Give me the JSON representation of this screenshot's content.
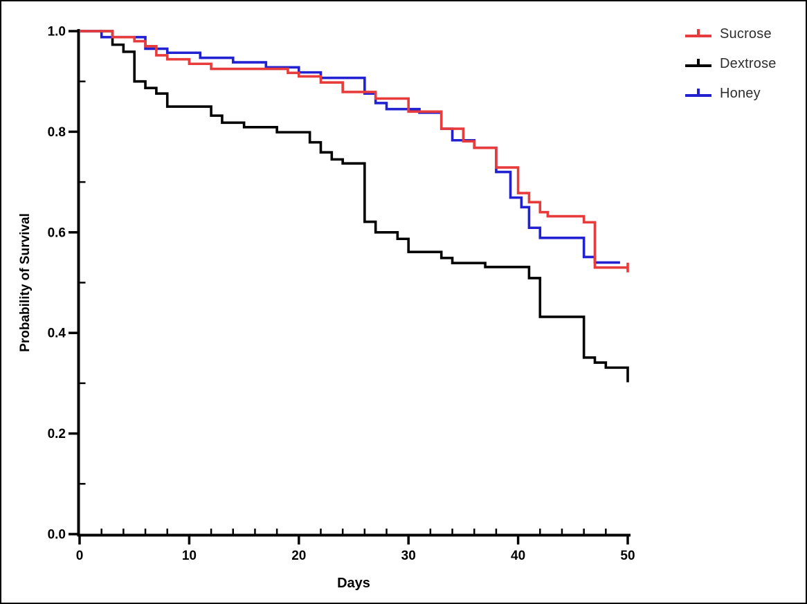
{
  "figure": {
    "background": "#ffffff",
    "frame_color": "#000000"
  },
  "chart_data": {
    "type": "line",
    "subtype": "kaplan-meier-step-survival",
    "title": "",
    "xlabel": "Days",
    "ylabel": "Probability of Survival",
    "xlim": [
      0,
      50
    ],
    "ylim": [
      0.0,
      1.0
    ],
    "x_major_ticks": [
      0,
      10,
      20,
      30,
      40,
      50
    ],
    "x_tick_labels": [
      "0",
      "10",
      "20",
      "30",
      "40",
      "50"
    ],
    "x_minor_step": 2,
    "y_major_ticks": [
      0.0,
      0.2,
      0.4,
      0.6,
      0.8,
      1.0
    ],
    "y_tick_labels": [
      "0.0",
      "0.2",
      "0.4",
      "0.6",
      "0.8",
      "1.0"
    ],
    "y_minor_step": 0.1,
    "grid": false,
    "legend_position": "top-right",
    "axis_color": "#000000",
    "series": [
      {
        "name": "Sucrose",
        "color": "#e83c3c",
        "z": 3,
        "end_day": 50,
        "steps": [
          [
            0,
            1.0
          ],
          [
            3,
            0.988
          ],
          [
            5,
            0.98
          ],
          [
            6,
            0.97
          ],
          [
            7,
            0.952
          ],
          [
            8,
            0.944
          ],
          [
            10,
            0.935
          ],
          [
            12,
            0.925
          ],
          [
            19,
            0.917
          ],
          [
            20,
            0.91
          ],
          [
            22,
            0.898
          ],
          [
            24,
            0.879
          ],
          [
            27,
            0.866
          ],
          [
            30,
            0.84
          ],
          [
            33,
            0.806
          ],
          [
            35,
            0.781
          ],
          [
            36,
            0.768
          ],
          [
            38,
            0.729
          ],
          [
            40,
            0.678
          ],
          [
            41,
            0.66
          ],
          [
            42,
            0.64
          ],
          [
            42.7,
            0.632
          ],
          [
            46,
            0.62
          ],
          [
            47,
            0.53
          ]
        ]
      },
      {
        "name": "Dextrose",
        "color": "#000000",
        "z": 1,
        "end_day": 50,
        "steps": [
          [
            0,
            1.0
          ],
          [
            3,
            0.973
          ],
          [
            4,
            0.959
          ],
          [
            5,
            0.9
          ],
          [
            6,
            0.887
          ],
          [
            7,
            0.876
          ],
          [
            8,
            0.85
          ],
          [
            12,
            0.832
          ],
          [
            13,
            0.818
          ],
          [
            15,
            0.809
          ],
          [
            18,
            0.799
          ],
          [
            21,
            0.779
          ],
          [
            22,
            0.759
          ],
          [
            23,
            0.745
          ],
          [
            24,
            0.737
          ],
          [
            26,
            0.621
          ],
          [
            27,
            0.6
          ],
          [
            29,
            0.587
          ],
          [
            30,
            0.561
          ],
          [
            33,
            0.549
          ],
          [
            34,
            0.539
          ],
          [
            37,
            0.531
          ],
          [
            41,
            0.509
          ],
          [
            42,
            0.432
          ],
          [
            46,
            0.351
          ],
          [
            47,
            0.341
          ],
          [
            48,
            0.331
          ],
          [
            50,
            0.302
          ]
        ]
      },
      {
        "name": "Honey",
        "color": "#2121d2",
        "z": 2,
        "end_day": 49.3,
        "steps": [
          [
            0,
            1.0
          ],
          [
            2,
            0.988
          ],
          [
            6,
            0.965
          ],
          [
            8,
            0.957
          ],
          [
            11,
            0.947
          ],
          [
            14,
            0.938
          ],
          [
            17,
            0.928
          ],
          [
            20,
            0.918
          ],
          [
            22,
            0.907
          ],
          [
            26,
            0.876
          ],
          [
            27,
            0.857
          ],
          [
            28,
            0.845
          ],
          [
            31,
            0.838
          ],
          [
            33,
            0.806
          ],
          [
            34,
            0.783
          ],
          [
            36,
            0.768
          ],
          [
            38,
            0.72
          ],
          [
            39.3,
            0.669
          ],
          [
            40.3,
            0.65
          ],
          [
            41,
            0.609
          ],
          [
            42,
            0.589
          ],
          [
            46,
            0.551
          ],
          [
            47,
            0.54
          ]
        ]
      }
    ],
    "censor_marks": [
      {
        "series": "Sucrose",
        "day": 50,
        "value": 0.53
      }
    ]
  },
  "legend": {
    "items": [
      {
        "label": "Sucrose",
        "color": "#e83c3c"
      },
      {
        "label": "Dextrose",
        "color": "#000000"
      },
      {
        "label": "Honey",
        "color": "#2121d2"
      }
    ]
  }
}
